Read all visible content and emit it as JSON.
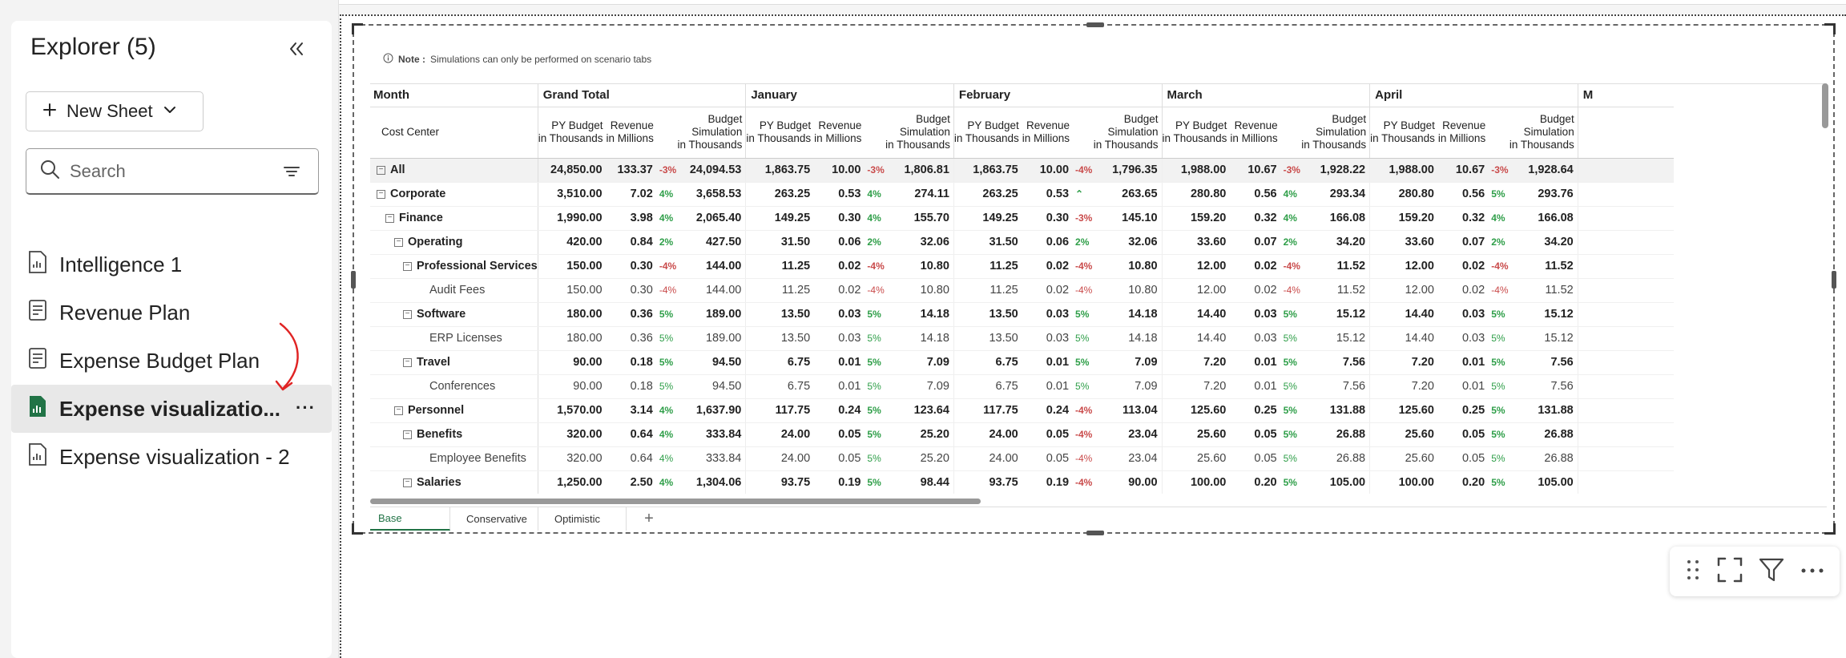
{
  "sidebar": {
    "title": "Explorer (5)",
    "new_sheet_label": "New Sheet",
    "search_placeholder": "Search",
    "items": [
      {
        "label": "Intelligence 1",
        "icon": "report-icon"
      },
      {
        "label": "Revenue Plan",
        "icon": "form-icon"
      },
      {
        "label": "Expense Budget Plan",
        "icon": "form-icon"
      },
      {
        "label": "Expense visualizatio...",
        "icon": "report-icon-filled",
        "active": true
      },
      {
        "label": "Expense visualization - 2",
        "icon": "report-icon"
      }
    ]
  },
  "note": {
    "label": "Note :",
    "text": "Simulations can only be performed on scenario tabs"
  },
  "table": {
    "row_header": "Month",
    "cost_center_header": "Cost Center",
    "months": [
      "Grand Total",
      "January",
      "February",
      "March",
      "April",
      "M"
    ],
    "measures": [
      {
        "l1": "PY Budget",
        "l2": "in Thousands"
      },
      {
        "l1": "Revenue",
        "l2": "in Millions"
      },
      {
        "l1": "Budget",
        "l2": "Simulation",
        "l3": "in Thousands"
      }
    ],
    "rows": [
      {
        "name": "All",
        "level": 0,
        "toggle": true,
        "bold": true,
        "total": true,
        "cells": [
          [
            "24,850.00",
            "133.37",
            "-3%",
            "24,094.53"
          ],
          [
            "1,863.75",
            "10.00",
            "-3%",
            "1,806.81"
          ],
          [
            "1,863.75",
            "10.00",
            "-4%",
            "1,796.35"
          ],
          [
            "1,988.00",
            "10.67",
            "-3%",
            "1,928.22"
          ],
          [
            "1,988.00",
            "10.67",
            "-3%",
            "1,928.64"
          ]
        ]
      },
      {
        "name": "Corporate",
        "level": 0,
        "toggle": true,
        "bold": true,
        "cells": [
          [
            "3,510.00",
            "7.02",
            "4%",
            "3,658.53"
          ],
          [
            "263.25",
            "0.53",
            "4%",
            "274.11"
          ],
          [
            "263.25",
            "0.53",
            "^",
            "263.65"
          ],
          [
            "280.80",
            "0.56",
            "4%",
            "293.34"
          ],
          [
            "280.80",
            "0.56",
            "5%",
            "293.76"
          ]
        ]
      },
      {
        "name": "Finance",
        "level": 1,
        "toggle": true,
        "bold": true,
        "cells": [
          [
            "1,990.00",
            "3.98",
            "4%",
            "2,065.40"
          ],
          [
            "149.25",
            "0.30",
            "4%",
            "155.70"
          ],
          [
            "149.25",
            "0.30",
            "-3%",
            "145.10"
          ],
          [
            "159.20",
            "0.32",
            "4%",
            "166.08"
          ],
          [
            "159.20",
            "0.32",
            "4%",
            "166.08"
          ]
        ]
      },
      {
        "name": "Operating",
        "level": 2,
        "toggle": true,
        "bold": true,
        "cells": [
          [
            "420.00",
            "0.84",
            "2%",
            "427.50"
          ],
          [
            "31.50",
            "0.06",
            "2%",
            "32.06"
          ],
          [
            "31.50",
            "0.06",
            "2%",
            "32.06"
          ],
          [
            "33.60",
            "0.07",
            "2%",
            "34.20"
          ],
          [
            "33.60",
            "0.07",
            "2%",
            "34.20"
          ]
        ]
      },
      {
        "name": "Professional Services",
        "level": 3,
        "toggle": true,
        "bold": true,
        "cells": [
          [
            "150.00",
            "0.30",
            "-4%",
            "144.00"
          ],
          [
            "11.25",
            "0.02",
            "-4%",
            "10.80"
          ],
          [
            "11.25",
            "0.02",
            "-4%",
            "10.80"
          ],
          [
            "12.00",
            "0.02",
            "-4%",
            "11.52"
          ],
          [
            "12.00",
            "0.02",
            "-4%",
            "11.52"
          ]
        ]
      },
      {
        "name": "Audit Fees",
        "level": 4,
        "toggle": false,
        "bold": false,
        "cells": [
          [
            "150.00",
            "0.30",
            "-4%",
            "144.00"
          ],
          [
            "11.25",
            "0.02",
            "-4%",
            "10.80"
          ],
          [
            "11.25",
            "0.02",
            "-4%",
            "10.80"
          ],
          [
            "12.00",
            "0.02",
            "-4%",
            "11.52"
          ],
          [
            "12.00",
            "0.02",
            "-4%",
            "11.52"
          ]
        ]
      },
      {
        "name": "Software",
        "level": 3,
        "toggle": true,
        "bold": true,
        "cells": [
          [
            "180.00",
            "0.36",
            "5%",
            "189.00"
          ],
          [
            "13.50",
            "0.03",
            "5%",
            "14.18"
          ],
          [
            "13.50",
            "0.03",
            "5%",
            "14.18"
          ],
          [
            "14.40",
            "0.03",
            "5%",
            "15.12"
          ],
          [
            "14.40",
            "0.03",
            "5%",
            "15.12"
          ]
        ]
      },
      {
        "name": "ERP Licenses",
        "level": 4,
        "toggle": false,
        "bold": false,
        "cells": [
          [
            "180.00",
            "0.36",
            "5%",
            "189.00"
          ],
          [
            "13.50",
            "0.03",
            "5%",
            "14.18"
          ],
          [
            "13.50",
            "0.03",
            "5%",
            "14.18"
          ],
          [
            "14.40",
            "0.03",
            "5%",
            "15.12"
          ],
          [
            "14.40",
            "0.03",
            "5%",
            "15.12"
          ]
        ]
      },
      {
        "name": "Travel",
        "level": 3,
        "toggle": true,
        "bold": true,
        "cells": [
          [
            "90.00",
            "0.18",
            "5%",
            "94.50"
          ],
          [
            "6.75",
            "0.01",
            "5%",
            "7.09"
          ],
          [
            "6.75",
            "0.01",
            "5%",
            "7.09"
          ],
          [
            "7.20",
            "0.01",
            "5%",
            "7.56"
          ],
          [
            "7.20",
            "0.01",
            "5%",
            "7.56"
          ]
        ]
      },
      {
        "name": "Conferences",
        "level": 4,
        "toggle": false,
        "bold": false,
        "cells": [
          [
            "90.00",
            "0.18",
            "5%",
            "94.50"
          ],
          [
            "6.75",
            "0.01",
            "5%",
            "7.09"
          ],
          [
            "6.75",
            "0.01",
            "5%",
            "7.09"
          ],
          [
            "7.20",
            "0.01",
            "5%",
            "7.56"
          ],
          [
            "7.20",
            "0.01",
            "5%",
            "7.56"
          ]
        ]
      },
      {
        "name": "Personnel",
        "level": 2,
        "toggle": true,
        "bold": true,
        "cells": [
          [
            "1,570.00",
            "3.14",
            "4%",
            "1,637.90"
          ],
          [
            "117.75",
            "0.24",
            "5%",
            "123.64"
          ],
          [
            "117.75",
            "0.24",
            "-4%",
            "113.04"
          ],
          [
            "125.60",
            "0.25",
            "5%",
            "131.88"
          ],
          [
            "125.60",
            "0.25",
            "5%",
            "131.88"
          ]
        ]
      },
      {
        "name": "Benefits",
        "level": 3,
        "toggle": true,
        "bold": true,
        "cells": [
          [
            "320.00",
            "0.64",
            "4%",
            "333.84"
          ],
          [
            "24.00",
            "0.05",
            "5%",
            "25.20"
          ],
          [
            "24.00",
            "0.05",
            "-4%",
            "23.04"
          ],
          [
            "25.60",
            "0.05",
            "5%",
            "26.88"
          ],
          [
            "25.60",
            "0.05",
            "5%",
            "26.88"
          ]
        ]
      },
      {
        "name": "Employee Benefits",
        "level": 4,
        "toggle": false,
        "bold": false,
        "cells": [
          [
            "320.00",
            "0.64",
            "4%",
            "333.84"
          ],
          [
            "24.00",
            "0.05",
            "5%",
            "25.20"
          ],
          [
            "24.00",
            "0.05",
            "-4%",
            "23.04"
          ],
          [
            "25.60",
            "0.05",
            "5%",
            "26.88"
          ],
          [
            "25.60",
            "0.05",
            "5%",
            "26.88"
          ]
        ]
      },
      {
        "name": "Salaries",
        "level": 3,
        "toggle": true,
        "bold": true,
        "cells": [
          [
            "1,250.00",
            "2.50",
            "4%",
            "1,304.06"
          ],
          [
            "93.75",
            "0.19",
            "5%",
            "98.44"
          ],
          [
            "93.75",
            "0.19",
            "-4%",
            "90.00"
          ],
          [
            "100.00",
            "0.20",
            "5%",
            "105.00"
          ],
          [
            "100.00",
            "0.20",
            "5%",
            "105.00"
          ]
        ]
      }
    ]
  },
  "tabs": [
    {
      "label": "Base",
      "active": true
    },
    {
      "label": "Conservative",
      "active": false
    },
    {
      "label": "Optimistic",
      "active": false
    }
  ],
  "colors": {
    "accent": "#217346",
    "positive": "#2e9e48",
    "negative": "#c94a4a",
    "arrow": "#e02424"
  }
}
